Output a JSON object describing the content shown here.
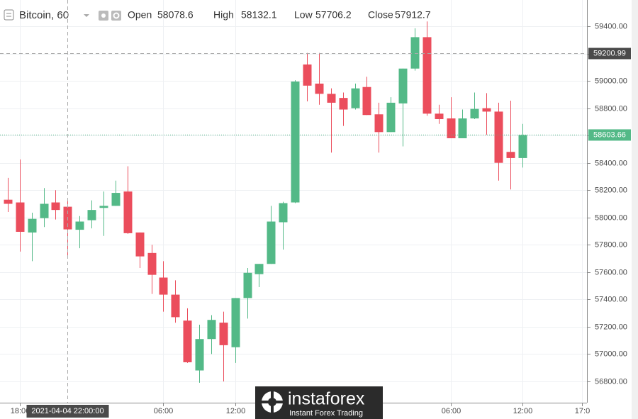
{
  "chart_data": {
    "type": "candlestick",
    "title": "Bitcoin, 60",
    "legend": {
      "open_label": "Open",
      "open": 58078.6,
      "high_label": "High",
      "high": 58132.1,
      "low_label": "Low",
      "low": 57706.2,
      "close_label": "Close",
      "close": 57912.7
    },
    "up_color": "#53b987",
    "down_color": "#eb4d5c",
    "grid": true,
    "xlim": [
      -0.65,
      48.4
    ],
    "xticks": [
      {
        "value": 1,
        "label": "18:00"
      },
      {
        "value": 13,
        "label": "06:00"
      },
      {
        "value": 19,
        "label": "12:00"
      },
      {
        "value": 37,
        "label": "06:00"
      },
      {
        "value": 43,
        "label": "12:00"
      },
      {
        "value": 48,
        "label": "17:0"
      }
    ],
    "ylim": [
      56644,
      59592
    ],
    "yticks": [
      {
        "value": 56800,
        "label": "56800.00"
      },
      {
        "value": 57000,
        "label": "57000.00"
      },
      {
        "value": 57200,
        "label": "57200.00"
      },
      {
        "value": 57400,
        "label": "57400.00"
      },
      {
        "value": 57600,
        "label": "57600.00"
      },
      {
        "value": 57800,
        "label": "57800.00"
      },
      {
        "value": 58000,
        "label": "58000.00"
      },
      {
        "value": 58200,
        "label": "58200.00"
      },
      {
        "value": 58400,
        "label": "58400.00"
      },
      {
        "value": 58600,
        "label": "58600.00"
      },
      {
        "value": 58800,
        "label": "58800.00"
      },
      {
        "value": 59000,
        "label": "59000.00"
      },
      {
        "value": 59200,
        "label": "59200.00"
      },
      {
        "value": 59400,
        "label": "59400.00"
      }
    ],
    "open": [
      58130,
      58110,
      57890,
      57995,
      58110,
      58078.6,
      57910,
      57980,
      58070,
      58085,
      58190,
      57890,
      57740,
      57560,
      57435,
      57245,
      56880,
      57110,
      57230,
      57050,
      57410,
      57585,
      57660,
      57965,
      58110,
      59120,
      58980,
      58905,
      58875,
      58800,
      58955,
      58755,
      58625,
      58835,
      59090,
      59320,
      58760,
      58725,
      58580,
      58725,
      58800,
      58775,
      58480,
      58435
    ],
    "high": [
      58290,
      58425,
      58035,
      58215,
      58200,
      58132.1,
      58010,
      58125,
      58190,
      58270,
      58375,
      57890,
      57800,
      57680,
      57540,
      57335,
      57215,
      57285,
      57310,
      57410,
      57630,
      57660,
      58085,
      58115,
      59005,
      59205,
      59205,
      58945,
      58915,
      58980,
      59030,
      58840,
      58880,
      59090,
      59385,
      59435,
      58825,
      58880,
      58790,
      58915,
      58910,
      58840,
      58855,
      58685
    ],
    "low": [
      58040,
      57750,
      57680,
      57930,
      57985,
      57706.2,
      57775,
      57920,
      57865,
      58085,
      57880,
      57630,
      57440,
      57310,
      57230,
      56935,
      56790,
      57000,
      56800,
      56935,
      57260,
      57490,
      57660,
      57765,
      58105,
      58850,
      58825,
      58475,
      58670,
      58790,
      58750,
      58475,
      58625,
      58520,
      59075,
      58745,
      58685,
      58580,
      58580,
      58720,
      58605,
      58270,
      58205,
      58365
    ],
    "close": [
      58100,
      57895,
      57990,
      58100,
      58055,
      57912.7,
      57970,
      58055,
      58085,
      58180,
      57885,
      57715,
      57580,
      57435,
      57270,
      56940,
      57110,
      57250,
      57065,
      57410,
      57595,
      57660,
      57970,
      58105,
      58995,
      58965,
      58905,
      58840,
      58790,
      58945,
      58750,
      58625,
      58840,
      59090,
      59320,
      58760,
      58720,
      58580,
      58725,
      58795,
      58775,
      58400,
      58435,
      58603.66
    ],
    "last_price": 58603.66,
    "crosshair": {
      "x": 5,
      "y": 59200.99,
      "x_label": "2021-04-04 22:00:00"
    },
    "watermark": {
      "brand": "instaforex",
      "tagline": "Instant Forex Trading"
    }
  }
}
